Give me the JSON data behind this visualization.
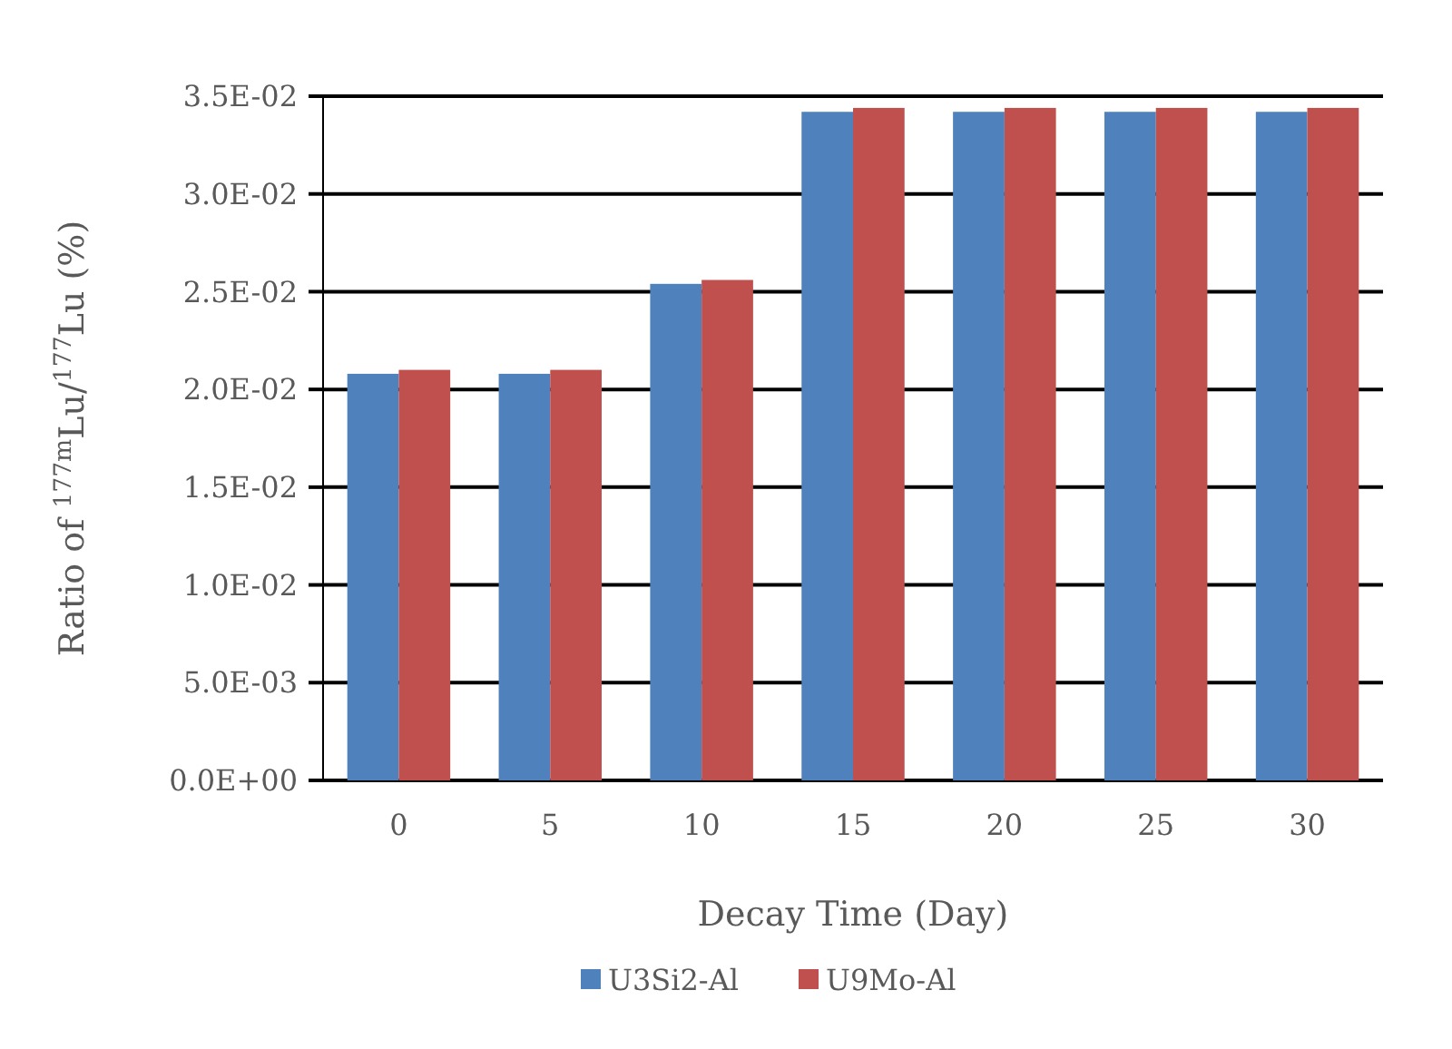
{
  "chart_data": {
    "type": "bar",
    "xlabel": "Decay Time (Day)",
    "ylabel": "Ratio of $^{177m}$Lu/$^{177}$Lu (%)",
    "categories": [
      "0",
      "5",
      "10",
      "15",
      "20",
      "25",
      "30"
    ],
    "series": [
      {
        "name": "U3Si2-Al",
        "color": "#4f81bd",
        "values": [
          0.0208,
          0.0208,
          0.0254,
          0.0342,
          0.0342,
          0.0342,
          0.0342
        ]
      },
      {
        "name": "U9Mo-Al",
        "color": "#c0504d",
        "values": [
          0.021,
          0.021,
          0.0256,
          0.0344,
          0.0344,
          0.0344,
          0.0344
        ]
      }
    ],
    "ylim": [
      0,
      0.035
    ],
    "yticks": [
      {
        "value": 0,
        "label": "0.0E+00"
      },
      {
        "value": 0.005,
        "label": "5.0E-03"
      },
      {
        "value": 0.01,
        "label": "1.0E-02"
      },
      {
        "value": 0.015,
        "label": "1.5E-02"
      },
      {
        "value": 0.02,
        "label": "2.0E-02"
      },
      {
        "value": 0.025,
        "label": "2.5E-02"
      },
      {
        "value": 0.03,
        "label": "3.0E-02"
      },
      {
        "value": 0.035,
        "label": "3.5E-02"
      }
    ],
    "grid": "y",
    "legend": "bottom"
  }
}
